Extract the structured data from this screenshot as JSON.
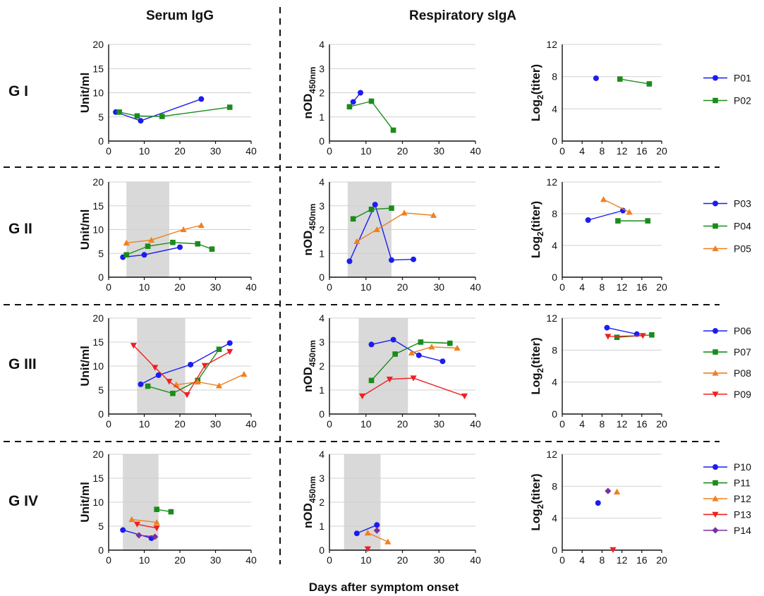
{
  "headers": {
    "left": "Serum IgG",
    "right": "Respiratory sIgA"
  },
  "x_axis_title": "Days after symptom onset",
  "y_labels": {
    "serum": "Unit/ml",
    "nod_main": "nOD",
    "nod_sub": "450nm",
    "log_main": "Log",
    "log_sub": "2",
    "log_tail": "(titer)"
  },
  "colors": {
    "blue": "#1c1cf0",
    "green": "#1a8c1a",
    "orange": "#f08020",
    "red": "#f02020",
    "purple": "#7b2fa0",
    "shade": "#d9d9d9",
    "grid": "#d0d0d0"
  },
  "chart_data": {
    "type": "line",
    "marker_shapes": {
      "P01": "circle",
      "P02": "square",
      "P03": "circle",
      "P04": "square",
      "P05": "triangle-up",
      "P06": "circle",
      "P07": "square",
      "P08": "triangle-up",
      "P09": "triangle-down",
      "P10": "circle",
      "P11": "square",
      "P12": "triangle-up",
      "P13": "triangle-down",
      "P14": "diamond"
    },
    "axes": {
      "serum": {
        "xlim": [
          0,
          40
        ],
        "xticks": [
          "0",
          "10",
          "20",
          "30",
          "40"
        ],
        "ylim": [
          0,
          20
        ],
        "yticks": [
          "0",
          "5",
          "10",
          "15",
          "20"
        ]
      },
      "nod": {
        "xlim": [
          0,
          40
        ],
        "xticks": [
          "0",
          "10",
          "20",
          "30",
          "40"
        ],
        "ylim": [
          0,
          4
        ],
        "yticks": [
          "0",
          "1",
          "2",
          "3",
          "4"
        ]
      },
      "log": {
        "xlim": [
          0,
          20
        ],
        "xticks": [
          "0",
          "4",
          "8",
          "12",
          "16",
          "20"
        ],
        "ylim": [
          0,
          12
        ],
        "yticks": [
          "0",
          "4",
          "8",
          "12"
        ]
      }
    },
    "groups": [
      {
        "label": "G I",
        "shade": null,
        "patients": [
          "P01",
          "P02"
        ],
        "colors": [
          "blue",
          "green"
        ],
        "serum": [
          {
            "name": "P01",
            "x": [
              2,
              9,
              26
            ],
            "y": [
              6,
              4.2,
              8.7
            ]
          },
          {
            "name": "P02",
            "x": [
              3,
              8,
              15,
              34
            ],
            "y": [
              6,
              5.2,
              5.1,
              7
            ]
          }
        ],
        "nod": [
          {
            "name": "P01",
            "x": [
              6.5,
              8.5
            ],
            "y": [
              1.62,
              2
            ]
          },
          {
            "name": "P02",
            "x": [
              5.5,
              11.5,
              17.5
            ],
            "y": [
              1.42,
              1.65,
              0.45
            ]
          }
        ],
        "log": [
          {
            "name": "P01",
            "x": [
              6.8
            ],
            "y": [
              7.8
            ]
          },
          {
            "name": "P02",
            "x": [
              11.6,
              17.5
            ],
            "y": [
              7.7,
              7.1
            ]
          }
        ]
      },
      {
        "label": "G II",
        "shade": [
          5,
          17
        ],
        "patients": [
          "P03",
          "P04",
          "P05"
        ],
        "colors": [
          "blue",
          "green",
          "orange"
        ],
        "serum": [
          {
            "name": "P03",
            "x": [
              4,
              10,
              20
            ],
            "y": [
              4.2,
              4.7,
              6.3
            ]
          },
          {
            "name": "P04",
            "x": [
              5,
              11,
              18,
              25,
              29
            ],
            "y": [
              4.7,
              6.5,
              7.3,
              7,
              5.9
            ]
          },
          {
            "name": "P05",
            "x": [
              5,
              12,
              21,
              26
            ],
            "y": [
              7.2,
              7.8,
              10,
              10.9
            ]
          }
        ],
        "nod": [
          {
            "name": "P03",
            "x": [
              5.5,
              12.5,
              17,
              23
            ],
            "y": [
              0.67,
              3.05,
              0.72,
              0.75
            ]
          },
          {
            "name": "P04",
            "x": [
              6.5,
              11.5,
              17
            ],
            "y": [
              2.45,
              2.85,
              2.9
            ]
          },
          {
            "name": "P05",
            "x": [
              7.5,
              13,
              20.5,
              28.5
            ],
            "y": [
              1.5,
              2,
              2.7,
              2.6
            ]
          }
        ],
        "log": [
          {
            "name": "P03",
            "x": [
              5.2,
              12.2
            ],
            "y": [
              7.2,
              8.4
            ]
          },
          {
            "name": "P04",
            "x": [
              11.2,
              17.2
            ],
            "y": [
              7.1,
              7.1
            ]
          },
          {
            "name": "P05",
            "x": [
              8.3,
              13.5
            ],
            "y": [
              9.8,
              8.2
            ]
          }
        ]
      },
      {
        "label": "G III",
        "shade": [
          8,
          21.5
        ],
        "patients": [
          "P06",
          "P07",
          "P08",
          "P09"
        ],
        "colors": [
          "blue",
          "green",
          "orange",
          "red"
        ],
        "serum": [
          {
            "name": "P06",
            "x": [
              9,
              14,
              23,
              34
            ],
            "y": [
              6.2,
              8.1,
              10.3,
              14.8
            ]
          },
          {
            "name": "P07",
            "x": [
              11,
              18,
              25,
              31
            ],
            "y": [
              5.8,
              4.3,
              7,
              13.5
            ]
          },
          {
            "name": "P08",
            "x": [
              19,
              25,
              31,
              38
            ],
            "y": [
              6.1,
              6.7,
              5.9,
              8.3
            ]
          },
          {
            "name": "P09",
            "x": [
              7,
              13,
              17,
              22,
              27,
              34
            ],
            "y": [
              14.3,
              9.7,
              6.8,
              4,
              10.1,
              13
            ]
          }
        ],
        "nod": [
          {
            "name": "P06",
            "x": [
              11.5,
              17.5,
              24.5,
              31
            ],
            "y": [
              2.9,
              3.1,
              2.45,
              2.2
            ]
          },
          {
            "name": "P07",
            "x": [
              11.5,
              18,
              25,
              33
            ],
            "y": [
              1.4,
              2.5,
              3,
              2.95
            ]
          },
          {
            "name": "P08",
            "x": [
              22.5,
              28,
              35
            ],
            "y": [
              2.55,
              2.8,
              2.75
            ]
          },
          {
            "name": "P09",
            "x": [
              9,
              16.5,
              23,
              37
            ],
            "y": [
              0.75,
              1.45,
              1.5,
              0.75
            ]
          }
        ],
        "log": [
          {
            "name": "P06",
            "x": [
              9,
              15
            ],
            "y": [
              10.8,
              10
            ]
          },
          {
            "name": "P07",
            "x": [
              11,
              18
            ],
            "y": [
              9.6,
              9.9
            ]
          },
          {
            "name": "P08",
            "x": [],
            "y": []
          },
          {
            "name": "P09",
            "x": [
              9.2,
              16.2
            ],
            "y": [
              9.7,
              9.8
            ]
          }
        ]
      },
      {
        "label": "G IV",
        "shade": [
          4,
          14
        ],
        "patients": [
          "P10",
          "P11",
          "P12",
          "P13",
          "P14"
        ],
        "colors": [
          "blue",
          "green",
          "orange",
          "red",
          "purple"
        ],
        "serum": [
          {
            "name": "P10",
            "x": [
              4,
              12
            ],
            "y": [
              4.2,
              2.5
            ]
          },
          {
            "name": "P11",
            "x": [
              13.5,
              17.5
            ],
            "y": [
              8.5,
              8
            ]
          },
          {
            "name": "P12",
            "x": [
              6.5,
              13.5
            ],
            "y": [
              6.4,
              5.8
            ]
          },
          {
            "name": "P13",
            "x": [
              8,
              13.5
            ],
            "y": [
              5.4,
              4.6
            ]
          },
          {
            "name": "P14",
            "x": [
              8.5,
              13
            ],
            "y": [
              3.1,
              2.8
            ]
          }
        ],
        "nod": [
          {
            "name": "P10",
            "x": [
              7.5,
              13
            ],
            "y": [
              0.7,
              1.05
            ]
          },
          {
            "name": "P11",
            "x": [],
            "y": []
          },
          {
            "name": "P12",
            "x": [
              10.5,
              16
            ],
            "y": [
              0.72,
              0.35
            ]
          },
          {
            "name": "P13",
            "x": [
              10.5
            ],
            "y": [
              0.05
            ]
          },
          {
            "name": "P14",
            "x": [
              13
            ],
            "y": [
              0.82
            ]
          }
        ],
        "log": [
          {
            "name": "P10",
            "x": [
              7.2
            ],
            "y": [
              5.9
            ]
          },
          {
            "name": "P11",
            "x": [],
            "y": []
          },
          {
            "name": "P12",
            "x": [
              11
            ],
            "y": [
              7.3
            ]
          },
          {
            "name": "P13",
            "x": [
              10.2
            ],
            "y": [
              0.05
            ]
          },
          {
            "name": "P14",
            "x": [
              9.2
            ],
            "y": [
              7.4
            ]
          }
        ]
      }
    ]
  }
}
